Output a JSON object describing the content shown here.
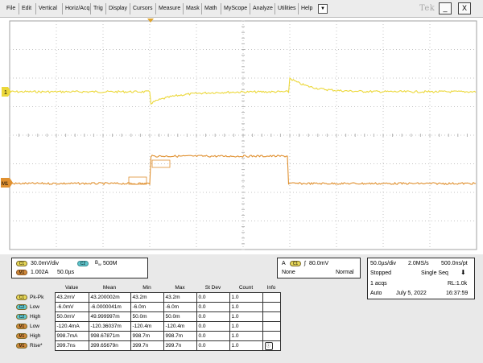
{
  "menubar": {
    "items": [
      "File",
      "Edit",
      "Vertical",
      "Horiz/Acq",
      "Trig",
      "Display",
      "Cursors",
      "Measure",
      "Mask",
      "Math",
      "MyScope",
      "Analyze",
      "Utilities",
      "Help"
    ],
    "more_symbol": "▼",
    "brand": "Tek",
    "minimize_symbol": "_",
    "close_symbol": "X"
  },
  "waveforms": {
    "ch1_marker": "1",
    "m1_marker": "M1",
    "ch1_color": "#ecd83a",
    "m1_color": "#e0902f",
    "grid_color": "#c4c4c4",
    "grid_border_color": "#a0a0a0"
  },
  "channel_settings": {
    "ch1_chip": "C1",
    "ch1_scale": "30.0mV/div",
    "ch2_chip": "C2",
    "bandwidth": "500M",
    "m1_chip": "M1",
    "m1_scale": "1.002A",
    "m1_time": "50.0µs"
  },
  "trigger": {
    "mode_letter": "A",
    "source_chip": "C1",
    "slope_symbol": "∫",
    "level": "80.0mV",
    "coupling": "None",
    "mode": "Normal"
  },
  "acquisition": {
    "timebase": "50.0µs/div",
    "sample_rate": "2.0MS/s",
    "resolution": "500.0ns/pt",
    "state": "Stopped",
    "seq_mode": "Single Seq",
    "acqs": "1 acqs",
    "record_length": "RL:1.0k",
    "horiz_mode": "Auto",
    "date": "July 5, 2022",
    "time": "16:37:59"
  },
  "measurements": {
    "headers": [
      "Value",
      "Mean",
      "Min",
      "Max",
      "St Dev",
      "Count",
      "Info"
    ],
    "rows": [
      {
        "chip": "C1",
        "chip_class": "c1",
        "name": "Pk-Pk",
        "value": "43.2mV",
        "mean": "43.200002m",
        "min": "43.2m",
        "max": "43.2m",
        "stdev": "0.0",
        "count": "1.0"
      },
      {
        "chip": "C2",
        "chip_class": "c2",
        "name": "Low",
        "value": "-6.0mV",
        "mean": "-6.0000041m",
        "min": "-6.0m",
        "max": "-6.0m",
        "stdev": "0.0",
        "count": "1.0"
      },
      {
        "chip": "C2",
        "chip_class": "c2",
        "name": "High",
        "value": "50.0mV",
        "mean": "49.999997m",
        "min": "50.0m",
        "max": "50.0m",
        "stdev": "0.0",
        "count": "1.0"
      },
      {
        "chip": "M1",
        "chip_class": "m1",
        "name": "Low",
        "value": "-120.4mA",
        "mean": "-120.36037m",
        "min": "-120.4m",
        "max": "-120.4m",
        "stdev": "0.0",
        "count": "1.0"
      },
      {
        "chip": "M1",
        "chip_class": "m1",
        "name": "High",
        "value": "998.7mA",
        "mean": "998.67871m",
        "min": "998.7m",
        "max": "998.7m",
        "stdev": "0.0",
        "count": "1.0"
      },
      {
        "chip": "M1",
        "chip_class": "m1",
        "name": "Rise*",
        "value": "399.7ns",
        "mean": "399.65679n",
        "min": "399.7n",
        "max": "399.7n",
        "stdev": "0.0",
        "count": "1.0"
      }
    ]
  }
}
